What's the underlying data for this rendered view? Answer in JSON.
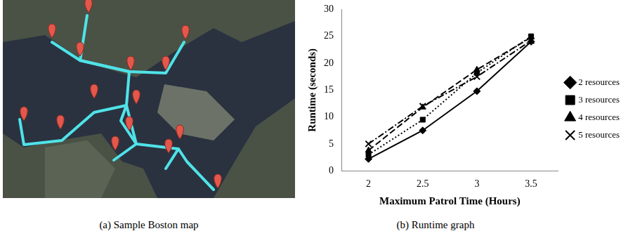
{
  "chart_data": {
    "type": "line",
    "x_label": "Maximum Patrol Time (Hours)",
    "y_label": "Runtime (seconds)",
    "categories": [
      "2",
      "2.5",
      "3",
      "3.5"
    ],
    "series": [
      {
        "name": "2 resources",
        "color": "#000000",
        "marker": "diamond",
        "line_style": "solid",
        "values": [
          2.2,
          7.5,
          14.8,
          24.0
        ]
      },
      {
        "name": "3 resources",
        "color": "#000000",
        "marker": "square",
        "line_style": "dotted",
        "values": [
          3.0,
          9.5,
          18.2,
          25.0
        ]
      },
      {
        "name": "4 resources",
        "color": "#000000",
        "marker": "triangle",
        "line_style": "dashed",
        "values": [
          3.8,
          11.8,
          18.8,
          24.8
        ]
      },
      {
        "name": "5 resources",
        "color": "#000000",
        "marker": "x",
        "line_style": "dashdot",
        "values": [
          5.0,
          12.0,
          17.5,
          24.2
        ]
      }
    ],
    "ylim": [
      0,
      30
    ],
    "yticks": [
      0,
      5,
      10,
      15,
      20,
      25,
      30
    ],
    "grid": false,
    "legend": "right"
  },
  "figure": {
    "panels": [
      {
        "caption": "(a) Sample Boston map"
      },
      {
        "caption": "(b) Runtime graph"
      }
    ]
  }
}
